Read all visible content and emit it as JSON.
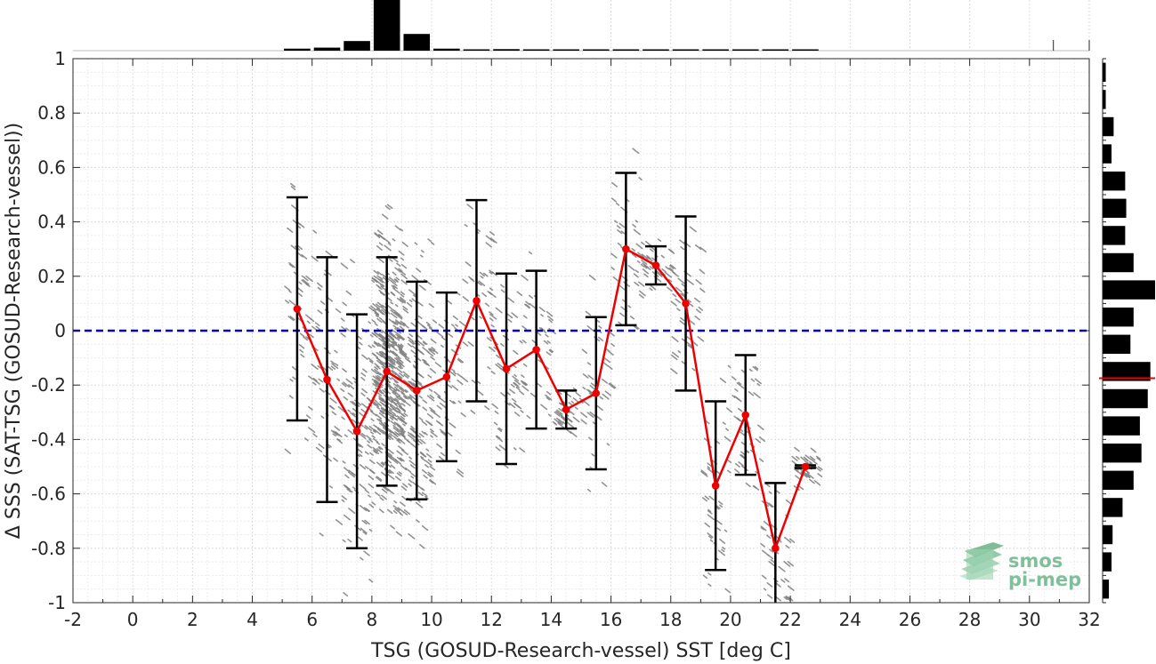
{
  "chart_data": {
    "type": "scatter",
    "xlabel": "TSG (GOSUD-Research-vessel) SST [deg C]",
    "ylabel": "Δ SSS (SAT-TSG (GOSUD-Research-vessel))",
    "xlim": [
      -2,
      32
    ],
    "ylim": [
      -1,
      1
    ],
    "xticks": [
      -2,
      0,
      2,
      4,
      6,
      8,
      10,
      12,
      14,
      16,
      18,
      20,
      22,
      24,
      26,
      28,
      30,
      32
    ],
    "yticks": [
      1,
      0.8,
      0.6,
      0.4,
      0.2,
      0,
      -0.2,
      -0.4,
      -0.6,
      -0.8,
      -1
    ],
    "grid": true,
    "reference_line": {
      "y": 0,
      "color": "#0000cc",
      "style": "dashed"
    },
    "binned_mean": {
      "color": "#ee0000",
      "x": [
        5.5,
        6.5,
        7.5,
        8.5,
        9.5,
        10.5,
        11.5,
        12.5,
        13.5,
        14.5,
        15.5,
        16.5,
        17.5,
        18.5,
        19.5,
        20.5,
        21.5,
        22.5
      ],
      "y": [
        0.08,
        -0.18,
        -0.37,
        -0.15,
        -0.22,
        -0.17,
        0.11,
        -0.14,
        -0.07,
        -0.29,
        -0.23,
        0.3,
        0.24,
        0.1,
        -0.57,
        -0.31,
        -0.8,
        -0.5
      ],
      "std": [
        0.41,
        0.45,
        0.43,
        0.42,
        0.4,
        0.31,
        0.37,
        0.35,
        0.29,
        0.07,
        0.28,
        0.28,
        0.07,
        0.32,
        0.31,
        0.22,
        0.24,
        0.005
      ]
    },
    "scatter_color": "#808080",
    "top_histogram": {
      "x": [
        5.5,
        6.5,
        7.5,
        8.5,
        9.5,
        10.5,
        11.5,
        12.5,
        13.5,
        14.5,
        15.5,
        16.5,
        17.5,
        18.5,
        19.5,
        20.5,
        21.5,
        22.5
      ],
      "values": [
        0.04,
        0.06,
        0.19,
        1.0,
        0.33,
        0.04,
        0.015,
        0.03,
        0.01,
        0.01,
        0.01,
        0.01,
        0.01,
        0.01,
        0.015,
        0.01,
        0.01,
        0.01
      ]
    },
    "right_histogram": {
      "y": [
        0.9,
        0.8,
        0.7,
        0.6,
        0.5,
        0.4,
        0.3,
        0.2,
        0.1,
        0.0,
        -0.1,
        -0.2,
        -0.3,
        -0.4,
        -0.5,
        -0.6,
        -0.7,
        -0.8,
        -0.9,
        -1.0
      ],
      "values": [
        0.06,
        0.06,
        0.21,
        0.17,
        0.43,
        0.45,
        0.43,
        0.59,
        1.0,
        0.59,
        0.53,
        0.91,
        0.86,
        0.71,
        0.74,
        0.59,
        0.38,
        0.19,
        0.17,
        0.12
      ],
      "median_line": {
        "y": -0.175,
        "color": "#ee0000"
      }
    }
  },
  "logo": {
    "line1": "smos",
    "line2": "pi-mep"
  }
}
